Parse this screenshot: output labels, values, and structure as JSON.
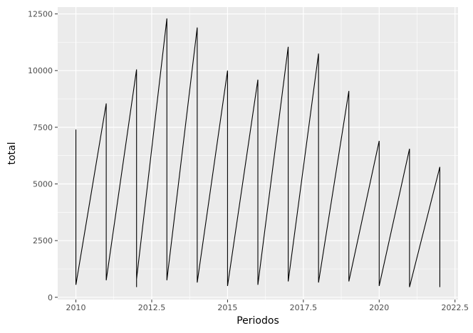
{
  "chart_data": {
    "type": "line",
    "title": "",
    "xlabel": "Periodos",
    "ylabel": "total",
    "xlim": [
      2009.4,
      2022.6
    ],
    "ylim": [
      -100,
      12800
    ],
    "grid": true,
    "legend": "none",
    "colors": {
      "panel": "#EBEBEB",
      "grid": "#FFFFFF",
      "line": "#000000"
    },
    "x_ticks": [
      2010,
      2012.5,
      2015,
      2017.5,
      2020,
      2022.5
    ],
    "x_tick_labels": [
      "2010",
      "2012.5",
      "2015",
      "2017.5",
      "2020",
      "2022.5"
    ],
    "y_ticks": [
      0,
      2500,
      5000,
      7500,
      10000,
      12500
    ],
    "y_tick_labels": [
      "0",
      "2500",
      "5000",
      "7500",
      "10000",
      "12500"
    ],
    "series": [
      {
        "x": [
          2010,
          2010,
          2011,
          2011,
          2012,
          2012,
          2012,
          2013,
          2013,
          2014,
          2014,
          2015,
          2015,
          2016,
          2016,
          2017,
          2017,
          2018,
          2018,
          2019,
          2019,
          2020,
          2020,
          2021,
          2021,
          2022,
          2022
        ],
        "y": [
          7400,
          550,
          8550,
          750,
          10050,
          450,
          800,
          12300,
          750,
          11900,
          650,
          10000,
          500,
          9600,
          550,
          11050,
          700,
          10750,
          650,
          9100,
          700,
          6900,
          500,
          6550,
          450,
          5750,
          450
        ]
      }
    ]
  }
}
